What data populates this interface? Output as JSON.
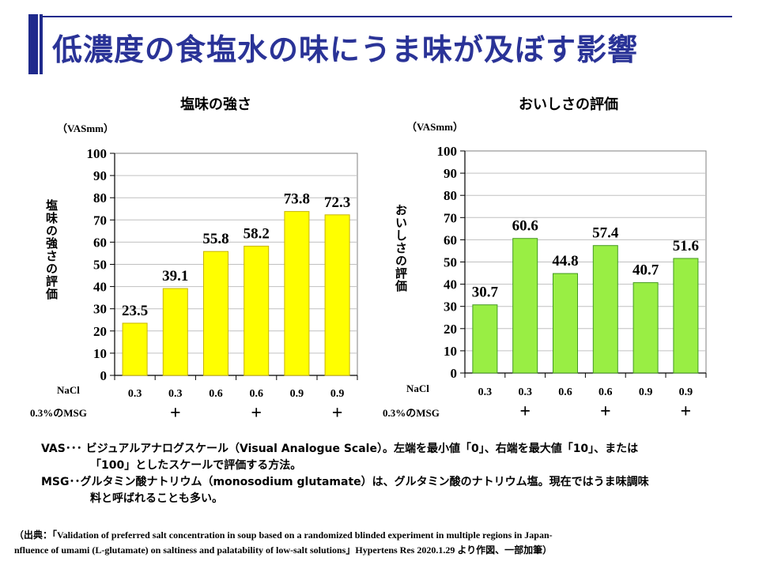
{
  "page": {
    "title": "低濃度の食塩水の味にうま味が及ぼす影響"
  },
  "chart_data": [
    {
      "type": "bar",
      "title": "塩味の強さ",
      "unit": "（VASmm）",
      "ylabel": "塩味の強さの評価",
      "ylim": [
        0,
        100
      ],
      "yticks": [
        0,
        10,
        20,
        30,
        40,
        50,
        60,
        70,
        80,
        90,
        100
      ],
      "categories": [
        "0.3",
        "0.3",
        "0.6",
        "0.6",
        "0.9",
        "0.9"
      ],
      "values": [
        23.5,
        39.1,
        55.8,
        58.2,
        73.8,
        72.3
      ],
      "value_labels": [
        "23.5",
        "39.1",
        "55.8",
        "58.2",
        "73.8",
        "72.3"
      ],
      "msg": [
        "",
        "+",
        "",
        "+",
        "",
        "+"
      ],
      "row_labels": {
        "nacl": "NaCl",
        "msg": "0.3%のMSG"
      },
      "bar_color": "#ffff00",
      "bar_edge": "#c8b400"
    },
    {
      "type": "bar",
      "title": "おいしさの評価",
      "unit": "（VASmm）",
      "ylabel": "おいしさの評価",
      "ylim": [
        0,
        100
      ],
      "yticks": [
        0,
        10,
        20,
        30,
        40,
        50,
        60,
        70,
        80,
        90,
        100
      ],
      "categories": [
        "0.3",
        "0.3",
        "0.6",
        "0.6",
        "0.9",
        "0.9"
      ],
      "values": [
        30.7,
        60.6,
        44.8,
        57.4,
        40.7,
        51.6
      ],
      "value_labels": [
        "30.7",
        "60.6",
        "44.8",
        "57.4",
        "40.7",
        "51.6"
      ],
      "msg": [
        "",
        "+",
        "",
        "+",
        "",
        "+"
      ],
      "row_labels": {
        "nacl": "NaCl",
        "msg": "0.3%のMSG"
      },
      "bar_color": "#99ee44",
      "bar_edge": "#449922"
    }
  ],
  "notes": {
    "vas_line1": "VAS･･･  ビジュアルアナログスケール（Visual Analogue Scale）。左端を最小値「0」、右端を最大値「10」、または",
    "vas_line2": "「100」としたスケールで評価する方法。",
    "msg_line1": "MSG･･グルタミン酸ナトリウム（monosodium glutamate）は、グルタミン酸のナトリウム塩。現在ではうま味調味",
    "msg_line2": "料と呼ばれることも多い。"
  },
  "source": {
    "line1": "（出典：「Validation of preferred salt concentration in soup based on a randomized blinded experiment in multiple regions in Japan-",
    "line2": "nfluence of umami (L-glutamate) on saltiness and palatability of low-salt solutions」Hypertens Res 2020.1.29 より作図、一部加筆）"
  }
}
